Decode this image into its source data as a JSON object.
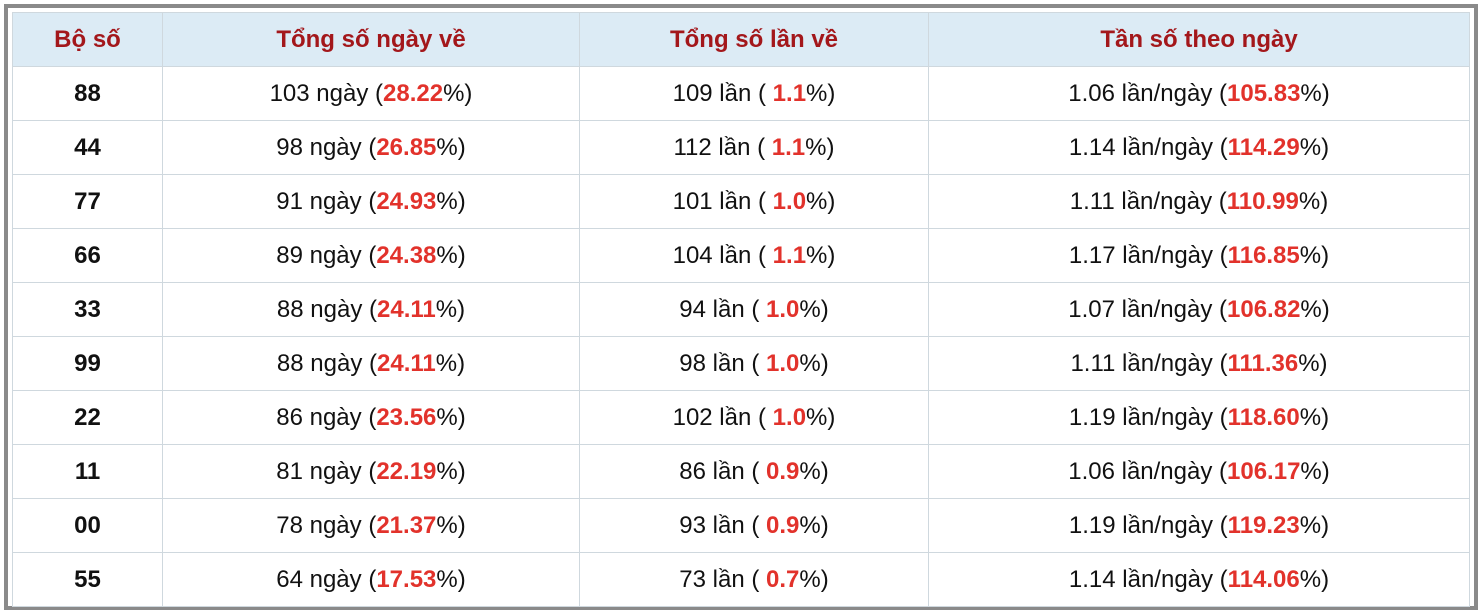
{
  "table": {
    "header": [
      "Bộ số",
      "Tổng số ngày về",
      "Tổng số lần về",
      "Tần số theo ngày"
    ],
    "rows": [
      [
        "88",
        {
          "pre": "103 ngày (",
          "red": "28.22",
          "post": "%)"
        },
        {
          "pre": "109 lần ( ",
          "red": "1.1",
          "post": "%)"
        },
        {
          "pre": "1.06 lần/ngày (",
          "red": "105.83",
          "post": "%)"
        }
      ],
      [
        "44",
        {
          "pre": "98 ngày (",
          "red": "26.85",
          "post": "%)"
        },
        {
          "pre": "112 lần ( ",
          "red": "1.1",
          "post": "%)"
        },
        {
          "pre": "1.14 lần/ngày (",
          "red": "114.29",
          "post": "%)"
        }
      ],
      [
        "77",
        {
          "pre": "91 ngày (",
          "red": "24.93",
          "post": "%)"
        },
        {
          "pre": "101 lần ( ",
          "red": "1.0",
          "post": "%)"
        },
        {
          "pre": "1.11 lần/ngày (",
          "red": "110.99",
          "post": "%)"
        }
      ],
      [
        "66",
        {
          "pre": "89 ngày (",
          "red": "24.38",
          "post": "%)"
        },
        {
          "pre": "104 lần ( ",
          "red": "1.1",
          "post": "%)"
        },
        {
          "pre": "1.17 lần/ngày (",
          "red": "116.85",
          "post": "%)"
        }
      ],
      [
        "33",
        {
          "pre": "88 ngày (",
          "red": "24.11",
          "post": "%)"
        },
        {
          "pre": "94 lần ( ",
          "red": "1.0",
          "post": "%)"
        },
        {
          "pre": "1.07 lần/ngày (",
          "red": "106.82",
          "post": "%)"
        }
      ],
      [
        "99",
        {
          "pre": "88 ngày (",
          "red": "24.11",
          "post": "%)"
        },
        {
          "pre": "98 lần ( ",
          "red": "1.0",
          "post": "%)"
        },
        {
          "pre": "1.11 lần/ngày (",
          "red": "111.36",
          "post": "%)"
        }
      ],
      [
        "22",
        {
          "pre": "86 ngày (",
          "red": "23.56",
          "post": "%)"
        },
        {
          "pre": "102 lần ( ",
          "red": "1.0",
          "post": "%)"
        },
        {
          "pre": "1.19 lần/ngày (",
          "red": "118.60",
          "post": "%)"
        }
      ],
      [
        "11",
        {
          "pre": "81 ngày (",
          "red": "22.19",
          "post": "%)"
        },
        {
          "pre": "86 lần ( ",
          "red": "0.9",
          "post": "%)"
        },
        {
          "pre": "1.06 lần/ngày (",
          "red": "106.17",
          "post": "%)"
        }
      ],
      [
        "00",
        {
          "pre": "78 ngày (",
          "red": "21.37",
          "post": "%)"
        },
        {
          "pre": "93 lần ( ",
          "red": "0.9",
          "post": "%)"
        },
        {
          "pre": "1.19 lần/ngày (",
          "red": "119.23",
          "post": "%)"
        }
      ],
      [
        "55",
        {
          "pre": "64 ngày (",
          "red": "17.53",
          "post": "%)"
        },
        {
          "pre": "73 lần ( ",
          "red": "0.7",
          "post": "%)"
        },
        {
          "pre": "1.14 lần/ngày (",
          "red": "114.06",
          "post": "%)"
        }
      ]
    ]
  }
}
